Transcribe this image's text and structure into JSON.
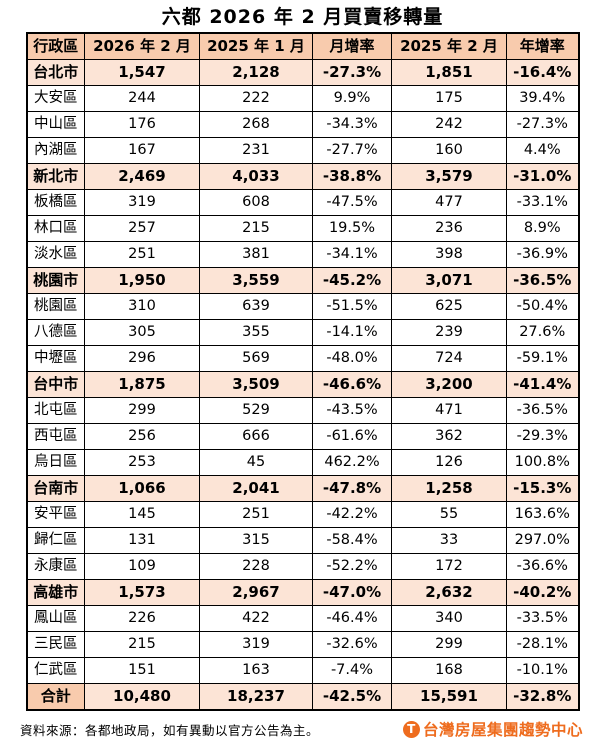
{
  "title": "六都 2026 年 2 月買賣移轉量",
  "colors": {
    "header_bg": "#f8cbad",
    "highlight_bg": "#fce4d6",
    "border": "#000000",
    "logo_orange": "#ee6c1e"
  },
  "chart_data": {
    "type": "table",
    "title": "六都 2026 年 2 月買賣移轉量",
    "columns": [
      "行政區",
      "2026 年 2 月",
      "2025 年 1 月",
      "月增率",
      "2025 年 2 月",
      "年增率"
    ],
    "rows": [
      {
        "row_type": "city",
        "cells": [
          "台北市",
          "1,547",
          "2,128",
          "-27.3%",
          "1,851",
          "-16.4%"
        ]
      },
      {
        "row_type": "district",
        "cells": [
          "大安區",
          "244",
          "222",
          "9.9%",
          "175",
          "39.4%"
        ]
      },
      {
        "row_type": "district",
        "cells": [
          "中山區",
          "176",
          "268",
          "-34.3%",
          "242",
          "-27.3%"
        ]
      },
      {
        "row_type": "district",
        "cells": [
          "內湖區",
          "167",
          "231",
          "-27.7%",
          "160",
          "4.4%"
        ]
      },
      {
        "row_type": "city",
        "cells": [
          "新北市",
          "2,469",
          "4,033",
          "-38.8%",
          "3,579",
          "-31.0%"
        ]
      },
      {
        "row_type": "district",
        "cells": [
          "板橋區",
          "319",
          "608",
          "-47.5%",
          "477",
          "-33.1%"
        ]
      },
      {
        "row_type": "district",
        "cells": [
          "林口區",
          "257",
          "215",
          "19.5%",
          "236",
          "8.9%"
        ]
      },
      {
        "row_type": "district",
        "cells": [
          "淡水區",
          "251",
          "381",
          "-34.1%",
          "398",
          "-36.9%"
        ]
      },
      {
        "row_type": "city",
        "cells": [
          "桃園市",
          "1,950",
          "3,559",
          "-45.2%",
          "3,071",
          "-36.5%"
        ]
      },
      {
        "row_type": "district",
        "cells": [
          "桃園區",
          "310",
          "639",
          "-51.5%",
          "625",
          "-50.4%"
        ]
      },
      {
        "row_type": "district",
        "cells": [
          "八德區",
          "305",
          "355",
          "-14.1%",
          "239",
          "27.6%"
        ]
      },
      {
        "row_type": "district",
        "cells": [
          "中壢區",
          "296",
          "569",
          "-48.0%",
          "724",
          "-59.1%"
        ]
      },
      {
        "row_type": "city",
        "cells": [
          "台中市",
          "1,875",
          "3,509",
          "-46.6%",
          "3,200",
          "-41.4%"
        ]
      },
      {
        "row_type": "district",
        "cells": [
          "北屯區",
          "299",
          "529",
          "-43.5%",
          "471",
          "-36.5%"
        ]
      },
      {
        "row_type": "district",
        "cells": [
          "西屯區",
          "256",
          "666",
          "-61.6%",
          "362",
          "-29.3%"
        ]
      },
      {
        "row_type": "district",
        "cells": [
          "烏日區",
          "253",
          "45",
          "462.2%",
          "126",
          "100.8%"
        ]
      },
      {
        "row_type": "city",
        "cells": [
          "台南市",
          "1,066",
          "2,041",
          "-47.8%",
          "1,258",
          "-15.3%"
        ]
      },
      {
        "row_type": "district",
        "cells": [
          "安平區",
          "145",
          "251",
          "-42.2%",
          "55",
          "163.6%"
        ]
      },
      {
        "row_type": "district",
        "cells": [
          "歸仁區",
          "131",
          "315",
          "-58.4%",
          "33",
          "297.0%"
        ]
      },
      {
        "row_type": "district",
        "cells": [
          "永康區",
          "109",
          "228",
          "-52.2%",
          "172",
          "-36.6%"
        ]
      },
      {
        "row_type": "city",
        "cells": [
          "高雄市",
          "1,573",
          "2,967",
          "-47.0%",
          "2,632",
          "-40.2%"
        ]
      },
      {
        "row_type": "district",
        "cells": [
          "鳳山區",
          "226",
          "422",
          "-46.4%",
          "340",
          "-33.5%"
        ]
      },
      {
        "row_type": "district",
        "cells": [
          "三民區",
          "215",
          "319",
          "-32.6%",
          "299",
          "-28.1%"
        ]
      },
      {
        "row_type": "district",
        "cells": [
          "仁武區",
          "151",
          "163",
          "-7.4%",
          "168",
          "-10.1%"
        ]
      },
      {
        "row_type": "total",
        "cells": [
          "合計",
          "10,480",
          "18,237",
          "-42.5%",
          "15,591",
          "-32.8%"
        ]
      }
    ]
  },
  "footer": {
    "source": "資料來源：各都地政局，如有異動以官方公告為主。",
    "logo_initial": "T",
    "logo_text": "台灣房屋集團趨勢中心"
  }
}
